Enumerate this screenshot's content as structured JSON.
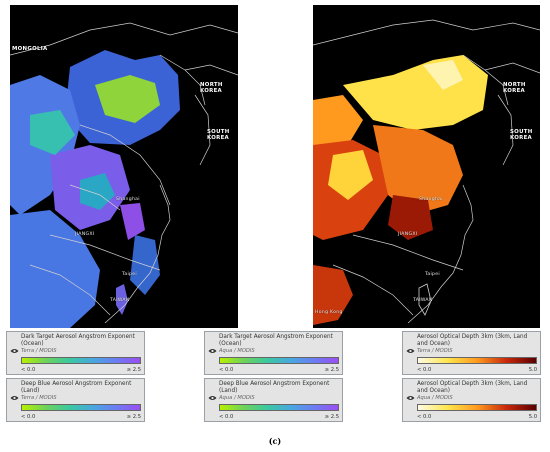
{
  "left_map": {
    "labels": {
      "mongolia": "MONGOLIA",
      "north_korea": "NORTH\nKOREA",
      "south_korea": "SOUTH\nKOREA",
      "shanghai": "Shanghai",
      "jiangxi": "JIANGXI",
      "taipei": "Taipei",
      "taiwan": "TAIWAN"
    }
  },
  "right_map": {
    "labels": {
      "north_korea": "NORTH\nKOREA",
      "south_korea": "SOUTH\nKOREA",
      "shanghai": "Shanghai",
      "jiangxi": "JIANGXI",
      "taipei": "Taipei",
      "taiwan": "TAIWAN",
      "hong_kong": "Hong Kong"
    }
  },
  "legend_cards": [
    {
      "title": "Dark Target Aerosol Angstrom Exponent (Ocean)",
      "subtitle": "Terra / MODIS",
      "min": "< 0.0",
      "max": "≥ 2.5",
      "colormap": "angstrom"
    },
    {
      "title": "Deep Blue Aerosol Angstrom Exponent (Land)",
      "subtitle": "Terra / MODIS",
      "min": "< 0.0",
      "max": "≥ 2.5",
      "colormap": "angstrom"
    },
    {
      "title": "Dark Target Aerosol Angstrom Exponent (Ocean)",
      "subtitle": "Aqua / MODIS",
      "min": "< 0.0",
      "max": "≥ 2.5",
      "colormap": "angstrom"
    },
    {
      "title": "Deep Blue Aerosol Angstrom Exponent (Land)",
      "subtitle": "Aqua / MODIS",
      "min": "< 0.0",
      "max": "≥ 2.5",
      "colormap": "angstrom"
    },
    {
      "title": "Aerosol Optical Depth 3km (3km, Land and Ocean)",
      "subtitle": "Terra / MODIS",
      "min": "< 0.0",
      "max": "5.0",
      "colormap": "aod"
    },
    {
      "title": "Aerosol Optical Depth 3km (3km, Land and Ocean)",
      "subtitle": "Aqua / MODIS",
      "min": "< 0.0",
      "max": "5.0",
      "colormap": "aod"
    }
  ],
  "caption": "(c)",
  "colors": {
    "map_bg": "#000000",
    "card_bg": "#e4e4e4",
    "border_line": "#cfcfcf"
  }
}
